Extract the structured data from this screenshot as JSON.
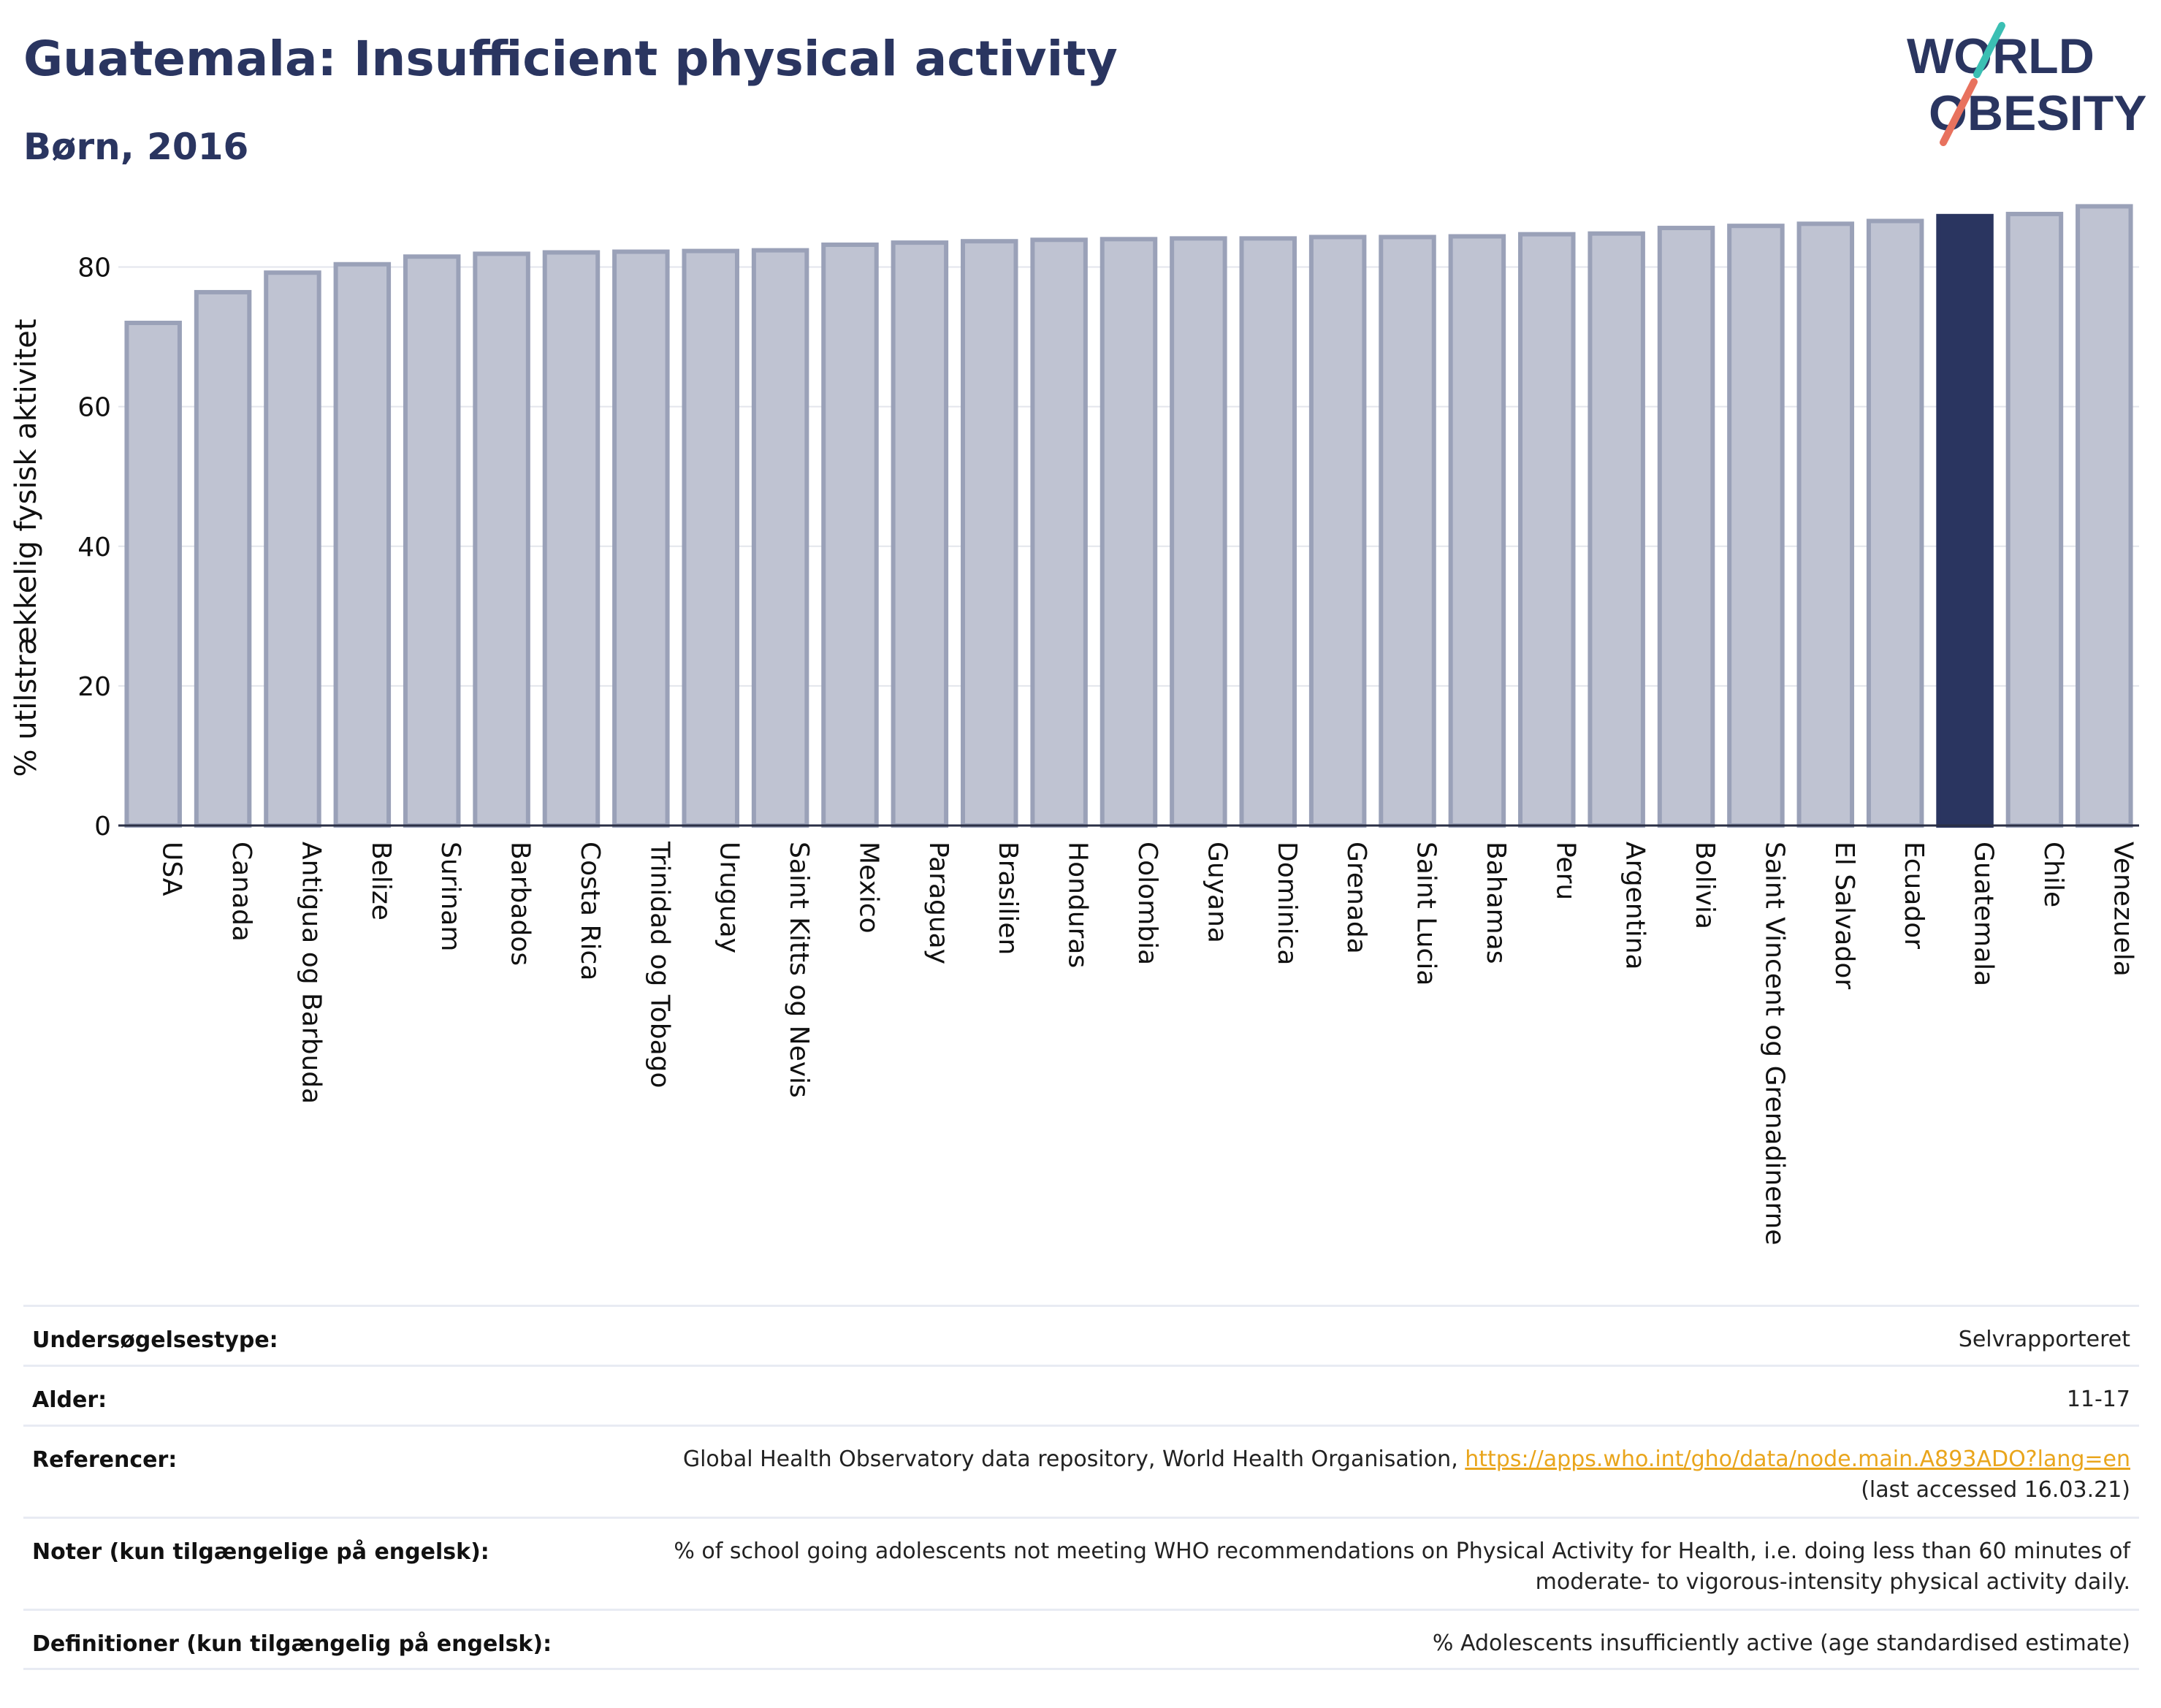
{
  "header": {
    "title": "Guatemala: Insufficient physical activity",
    "subtitle": "Børn, 2016"
  },
  "logo": {
    "line1": "WORLD",
    "line2": "OBESITY",
    "accent_teal": "#3bbfb3",
    "accent_coral": "#e8725e",
    "text_color": "#2a3560"
  },
  "chart_data": {
    "type": "bar",
    "ylabel": "% utilstrækkelig fysisk aktivitet",
    "ylim": [
      0,
      90
    ],
    "yticks": [
      0,
      20,
      40,
      60,
      80
    ],
    "grid": true,
    "highlight": "Guatemala",
    "colors": {
      "bar_fill": "#bfc3d2",
      "bar_stroke": "#9aa1b8",
      "highlight_fill": "#2a3560"
    },
    "categories": [
      "USA",
      "Canada",
      "Antigua og Barbuda",
      "Belize",
      "Surinam",
      "Barbados",
      "Costa Rica",
      "Trinidad og Tobago",
      "Uruguay",
      "Saint Kitts og Nevis",
      "Mexico",
      "Paraguay",
      "Brasilien",
      "Honduras",
      "Colombia",
      "Guyana",
      "Dominica",
      "Grenada",
      "Saint Lucia",
      "Bahamas",
      "Peru",
      "Argentina",
      "Bolivia",
      "Saint Vincent og Grenadinerne",
      "El Salvador",
      "Ecuador",
      "Guatemala",
      "Chile",
      "Venezuela"
    ],
    "values": [
      72.0,
      76.4,
      79.2,
      80.4,
      81.5,
      81.9,
      82.1,
      82.2,
      82.3,
      82.4,
      83.2,
      83.5,
      83.7,
      83.9,
      84.0,
      84.1,
      84.1,
      84.3,
      84.3,
      84.4,
      84.7,
      84.8,
      85.6,
      85.9,
      86.2,
      86.6,
      87.3,
      87.6,
      88.7
    ]
  },
  "info": {
    "rows": [
      {
        "label": "Undersøgelsestype:",
        "value": "Selvrapporteret"
      },
      {
        "label": "Alder:",
        "value": "11-17"
      },
      {
        "label": "Referencer:",
        "value": "Global Health Observatory data repository, World Health Organisation, ",
        "link": "https://apps.who.int/gho/data/node.main.A893ADO?lang=en",
        "value2": "(last accessed 16.03.21)"
      },
      {
        "label": "Noter (kun tilgængelige på engelsk):",
        "value": "% of school going adolescents not meeting WHO recommendations on Physical Activity for Health, i.e. doing less than 60 minutes of",
        "value2": "moderate- to vigorous-intensity physical activity daily."
      },
      {
        "label": "Definitioner (kun tilgængelig på engelsk):",
        "value": "% Adolescents insufficiently active (age standardised estimate)"
      }
    ]
  }
}
